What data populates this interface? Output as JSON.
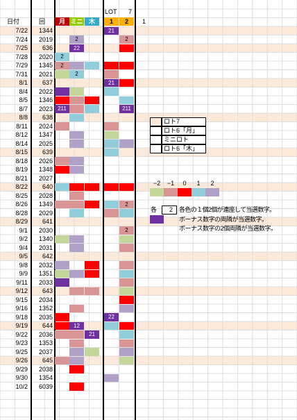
{
  "header": {
    "lot_label": "LOT",
    "lot_value": "7",
    "date_col": "日付",
    "draw_col": "回",
    "cols": [
      {
        "label": "月",
        "color": "#c00000"
      },
      {
        "label": "ミニ",
        "color": "#99cc00"
      },
      {
        "label": "木",
        "color": "#33aacc"
      },
      {
        "label": "1",
        "color": "#ffb000"
      },
      {
        "label": "2",
        "color": "#ffb000"
      }
    ],
    "extra": "1"
  },
  "colors": {
    "red": "#ff0000",
    "pink": "#d99595",
    "purple": "#7030a0",
    "lavender": "#b1a0c7",
    "blue": "#92cddc",
    "green": "#c4d79b",
    "peach": "#fde9d9"
  },
  "rows": [
    {
      "date": "7/22",
      "draw": "1344",
      "shade": true,
      "cells": [
        "",
        "",
        "",
        "purple",
        ""
      ],
      "labels": [
        "",
        "",
        "",
        "21",
        ""
      ]
    },
    {
      "date": "7/24",
      "draw": "2019",
      "shade": false,
      "cells": [
        "",
        "lavender",
        "",
        "",
        "pink"
      ],
      "labels": [
        "",
        "2",
        "",
        "",
        "2"
      ]
    },
    {
      "date": "7/25",
      "draw": "636",
      "shade": true,
      "cells": [
        "",
        "purple",
        "",
        "",
        "red"
      ],
      "labels": [
        "",
        "22",
        "",
        "",
        ""
      ]
    },
    {
      "date": "7/28",
      "draw": "2020",
      "shade": false,
      "cells": [
        "blue",
        "",
        "",
        "",
        ""
      ],
      "labels": [
        "2",
        "",
        "",
        "",
        ""
      ]
    },
    {
      "date": "7/29",
      "draw": "1345",
      "shade": false,
      "cells": [
        "pink",
        "lavender",
        "blue",
        "red",
        "red"
      ],
      "labels": [
        "2",
        "",
        "",
        "",
        ""
      ]
    },
    {
      "date": "7/31",
      "draw": "2021",
      "shade": false,
      "cells": [
        "green",
        "blue",
        "",
        "pink",
        ""
      ],
      "labels": [
        "",
        "2",
        "",
        "",
        ""
      ]
    },
    {
      "date": "8/1",
      "draw": "637",
      "shade": true,
      "cells": [
        "",
        "",
        "",
        "purple",
        "red"
      ],
      "labels": [
        "",
        "",
        "",
        "21",
        ""
      ]
    },
    {
      "date": "8/4",
      "draw": "2022",
      "shade": false,
      "cells": [
        "purple",
        "green",
        "",
        "blue",
        ""
      ],
      "labels": [
        "",
        "",
        "",
        "",
        ""
      ]
    },
    {
      "date": "8/5",
      "draw": "1346",
      "shade": false,
      "cells": [
        "red",
        "pink",
        "red",
        "",
        "blue"
      ],
      "labels": [
        "",
        "",
        "",
        "",
        ""
      ]
    },
    {
      "date": "8/7",
      "draw": "2023",
      "shade": false,
      "cells": [
        "purple",
        "pink",
        "blue",
        "",
        "purple"
      ],
      "labels": [
        "211",
        "",
        "",
        "",
        "211"
      ]
    },
    {
      "date": "8/8",
      "draw": "638",
      "shade": true,
      "cells": [
        "",
        "blue",
        "",
        "",
        ""
      ],
      "labels": [
        "",
        "",
        "",
        "",
        ""
      ]
    },
    {
      "date": "8/11",
      "draw": "2024",
      "shade": false,
      "cells": [
        "pink",
        "",
        "",
        "pink",
        ""
      ],
      "labels": [
        "",
        "",
        "",
        "",
        ""
      ]
    },
    {
      "date": "8/12",
      "draw": "1347",
      "shade": false,
      "cells": [
        "",
        "lavender",
        "",
        "green",
        ""
      ],
      "labels": [
        "",
        "",
        "",
        "",
        ""
      ]
    },
    {
      "date": "8/14",
      "draw": "2025",
      "shade": false,
      "cells": [
        "",
        "lavender",
        "",
        "blue",
        "lavender"
      ],
      "labels": [
        "",
        "",
        "",
        "",
        ""
      ]
    },
    {
      "date": "8/15",
      "draw": "639",
      "shade": true,
      "cells": [
        "",
        "",
        "",
        "blue",
        ""
      ],
      "labels": [
        "",
        "",
        "",
        "",
        ""
      ]
    },
    {
      "date": "8/18",
      "draw": "2026",
      "shade": false,
      "cells": [
        "pink",
        "lavender",
        "",
        "",
        ""
      ],
      "labels": [
        "",
        "",
        "",
        "",
        ""
      ]
    },
    {
      "date": "8/19",
      "draw": "1348",
      "shade": false,
      "cells": [
        "red",
        "lavender",
        "",
        "",
        ""
      ],
      "labels": [
        "",
        "",
        "",
        "",
        ""
      ]
    },
    {
      "date": "8/21",
      "draw": "2027",
      "shade": false,
      "cells": [
        "",
        "",
        "",
        "",
        ""
      ],
      "labels": [
        "",
        "",
        "",
        "",
        ""
      ]
    },
    {
      "date": "8/22",
      "draw": "640",
      "shade": true,
      "cells": [
        "blue",
        "red",
        "red",
        "red",
        "red"
      ],
      "labels": [
        "",
        "",
        "",
        "",
        ""
      ]
    },
    {
      "date": "8/25",
      "draw": "2028",
      "shade": false,
      "cells": [
        "",
        "pink",
        "",
        "",
        ""
      ],
      "labels": [
        "",
        "",
        "",
        "",
        ""
      ]
    },
    {
      "date": "8/26",
      "draw": "1349",
      "shade": false,
      "cells": [
        "pink",
        "pink",
        "red",
        "blue",
        "pink"
      ],
      "labels": [
        "",
        "",
        "",
        "",
        "2"
      ]
    },
    {
      "date": "8/28",
      "draw": "2029",
      "shade": false,
      "cells": [
        "",
        "blue",
        "",
        "pink",
        "blue"
      ],
      "labels": [
        "",
        "",
        "",
        "",
        ""
      ]
    },
    {
      "date": "8/29",
      "draw": "641",
      "shade": true,
      "cells": [
        "",
        "",
        "",
        "",
        ""
      ],
      "labels": [
        "",
        "",
        "",
        "",
        ""
      ]
    },
    {
      "date": "9/1",
      "draw": "2030",
      "shade": false,
      "cells": [
        "",
        "",
        "",
        "",
        "pink"
      ],
      "labels": [
        "",
        "",
        "",
        "",
        "2"
      ]
    },
    {
      "date": "9/2",
      "draw": "1340",
      "shade": false,
      "cells": [
        "green",
        "lavender",
        "",
        "",
        "green"
      ],
      "labels": [
        "",
        "",
        "",
        "",
        ""
      ]
    },
    {
      "date": "9/4",
      "draw": "2031",
      "shade": false,
      "cells": [
        "",
        "lavender",
        "",
        "",
        "pink"
      ],
      "labels": [
        "",
        "",
        "",
        "",
        ""
      ]
    },
    {
      "date": "9/5",
      "draw": "642",
      "shade": true,
      "cells": [
        "",
        "",
        "",
        "",
        ""
      ],
      "labels": [
        "",
        "",
        "",
        "",
        ""
      ]
    },
    {
      "date": "9/8",
      "draw": "2032",
      "shade": false,
      "cells": [
        "lavender",
        "",
        "red",
        "",
        "pink"
      ],
      "labels": [
        "",
        "",
        "",
        "",
        ""
      ]
    },
    {
      "date": "9/9",
      "draw": "1351",
      "shade": false,
      "cells": [
        "green",
        "lavender",
        "red",
        "",
        "blue"
      ],
      "labels": [
        "",
        "",
        "",
        "",
        ""
      ]
    },
    {
      "date": "9/11",
      "draw": "2033",
      "shade": false,
      "cells": [
        "purple",
        "",
        "",
        "",
        "pink"
      ],
      "labels": [
        "",
        "",
        "",
        "",
        ""
      ]
    },
    {
      "date": "9/12",
      "draw": "643",
      "shade": true,
      "cells": [
        "",
        "pink",
        "pink",
        "",
        "green"
      ],
      "labels": [
        "",
        "",
        "",
        "",
        ""
      ]
    },
    {
      "date": "9/15",
      "draw": "2034",
      "shade": false,
      "cells": [
        "",
        "",
        "",
        "",
        "red"
      ],
      "labels": [
        "",
        "",
        "",
        "",
        ""
      ]
    },
    {
      "date": "9/16",
      "draw": "1352",
      "shade": false,
      "cells": [
        "",
        "pink",
        "",
        "",
        "lavender"
      ],
      "labels": [
        "",
        "",
        "",
        "",
        ""
      ]
    },
    {
      "date": "9/18",
      "draw": "2035",
      "shade": false,
      "cells": [
        "red",
        "",
        "",
        "purple",
        ""
      ],
      "labels": [
        "",
        "",
        "",
        "22",
        ""
      ]
    },
    {
      "date": "9/19",
      "draw": "644",
      "shade": true,
      "cells": [
        "red",
        "purple",
        "",
        "blue",
        "red"
      ],
      "labels": [
        "",
        "12",
        "",
        "",
        ""
      ]
    },
    {
      "date": "9/22",
      "draw": "2036",
      "shade": false,
      "cells": [
        "pink",
        "pink",
        "purple",
        "",
        "blue"
      ],
      "labels": [
        "",
        "",
        "21",
        "",
        ""
      ]
    },
    {
      "date": "9/23",
      "draw": "1353",
      "shade": false,
      "cells": [
        "",
        "pink",
        "",
        "",
        "pink"
      ],
      "labels": [
        "",
        "",
        "",
        "",
        ""
      ]
    },
    {
      "date": "9/25",
      "draw": "2037",
      "shade": false,
      "cells": [
        "",
        "lavender",
        "green",
        "",
        "lavender"
      ],
      "labels": [
        "",
        "",
        "",
        "",
        ""
      ]
    },
    {
      "date": "9/26",
      "draw": "645",
      "shade": true,
      "cells": [
        "pink",
        "lavender",
        "",
        "",
        "green"
      ],
      "labels": [
        "",
        "",
        "",
        "",
        ""
      ]
    },
    {
      "date": "9/29",
      "draw": "2038",
      "shade": false,
      "cells": [
        "",
        "red",
        "",
        "",
        ""
      ],
      "labels": [
        "",
        "",
        "",
        "",
        ""
      ]
    },
    {
      "date": "9/30",
      "draw": "1354",
      "shade": false,
      "cells": [
        "",
        "",
        "",
        "lavender",
        ""
      ],
      "labels": [
        "",
        "",
        "",
        "",
        ""
      ]
    },
    {
      "date": "10/2",
      "draw": "6039",
      "shade": false,
      "cells": [
        "",
        "red",
        "",
        "",
        ""
      ],
      "labels": [
        "",
        "",
        "",
        "",
        ""
      ]
    }
  ],
  "legend_types": [
    {
      "label": "ロト7",
      "color": "peach"
    },
    {
      "label": "ロト6「月」",
      "color": "white"
    },
    {
      "label": "ミニロト",
      "color": "white"
    },
    {
      "label": "ロト6「木」",
      "color": "white"
    }
  ],
  "offset_scale": {
    "labels": [
      "−2",
      "−1",
      "0",
      "1",
      "2"
    ],
    "colors": [
      "green",
      "pink",
      "red",
      "blue",
      "lavender"
    ]
  },
  "notes": {
    "each_prefix": "各",
    "each_value": "2",
    "note1": "各色の１個2個が連座して当選数字。",
    "note2": "ボーナス数字の両隣が当選数字。",
    "note3": "ボーナス数字の2個両隣が当選数字。"
  }
}
